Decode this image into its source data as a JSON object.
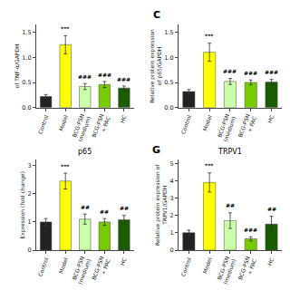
{
  "chart_data": [
    {
      "type": "bar",
      "ylabel": "of TNF-α/GAPDH",
      "categories": [
        "Control",
        "Model",
        "BCG-PSN\n(medium)",
        "BCG-PSN\n+ PAC",
        "HC"
      ],
      "values": [
        0.22,
        1.25,
        0.42,
        0.46,
        0.39
      ],
      "errors": [
        0.04,
        0.18,
        0.06,
        0.06,
        0.04
      ],
      "colors": [
        "#222222",
        "#ffff00",
        "#ccffaa",
        "#77cc00",
        "#1a5c00"
      ],
      "ylim": [
        0,
        1.65
      ],
      "yticks": [
        {
          "value": 0,
          "label": "0.0"
        },
        0.5,
        {
          "value": 1,
          "label": "1.0"
        },
        1.5
      ],
      "grid": false,
      "annotations": [
        {
          "category": "Model",
          "text": "***"
        },
        {
          "category": "BCG-PSN\n(medium)",
          "text": "###"
        },
        {
          "category": "BCG-PSN\n+ PAC",
          "text": "###"
        },
        {
          "category": "HC",
          "text": "###"
        }
      ]
    },
    {
      "type": "bar",
      "ylabel": "Relative protein expression\nof p65/GAPDH",
      "categories": [
        "Control",
        "Model",
        "BCG-PSN\n(medium)",
        "BCG-PSN\n+ PAC",
        "HC"
      ],
      "values": [
        0.32,
        1.1,
        0.52,
        0.5,
        0.51
      ],
      "errors": [
        0.04,
        0.18,
        0.06,
        0.05,
        0.05
      ],
      "colors": [
        "#222222",
        "#ffff00",
        "#ccffaa",
        "#77cc00",
        "#1a5c00"
      ],
      "ylim": [
        0,
        1.65
      ],
      "yticks": [
        {
          "value": 0,
          "label": "0.0"
        },
        0.5,
        {
          "value": 1,
          "label": "1.0"
        },
        1.5
      ],
      "grid": false,
      "annotations": [
        {
          "text": "C"
        },
        {
          "category": "Model",
          "text": "***"
        },
        {
          "category": "BCG-PSN\n(medium)",
          "text": "###"
        },
        {
          "category": "BCG-PSN\n+ PAC",
          "text": "###"
        },
        {
          "category": "HC",
          "text": "###"
        }
      ]
    },
    {
      "type": "bar",
      "title": "p65",
      "ylabel": "Expression (fold change)",
      "categories": [
        "Control",
        "Model",
        "BCG-PSN\n(medium)",
        "BCG-PSN\n+ PAC",
        "HC"
      ],
      "values": [
        1.0,
        2.45,
        1.1,
        1.0,
        1.08
      ],
      "errors": [
        0.12,
        0.28,
        0.18,
        0.12,
        0.15
      ],
      "colors": [
        "#222222",
        "#ffff00",
        "#ccffaa",
        "#77cc00",
        "#1a5c00"
      ],
      "ylim": [
        0,
        3.2
      ],
      "yticks": [
        0,
        1,
        2,
        3
      ],
      "grid": false,
      "annotations": [
        {
          "category": "Model",
          "text": "***"
        },
        {
          "category": "BCG-PSN\n(medium)",
          "text": "##"
        },
        {
          "category": "BCG-PSN\n+ PAC",
          "text": "##"
        },
        {
          "category": "HC",
          "text": "##"
        }
      ]
    },
    {
      "type": "bar",
      "title": "TRPV1",
      "ylabel": "Relative protein expression of\nTRPV1/GAPDH",
      "categories": [
        "Control",
        "Model",
        "BCG-PSN\n(medium)",
        "BCG-PSN\n+ PAC",
        "HC"
      ],
      "values": [
        1.0,
        3.9,
        1.7,
        0.65,
        1.5
      ],
      "errors": [
        0.15,
        0.55,
        0.45,
        0.12,
        0.45
      ],
      "colors": [
        "#222222",
        "#ffff00",
        "#ccffaa",
        "#77cc00",
        "#1a5c00"
      ],
      "ylim": [
        0,
        5.2
      ],
      "yticks": [
        0,
        1,
        2,
        3,
        4,
        5
      ],
      "grid": false,
      "annotations": [
        {
          "text": "G"
        },
        {
          "category": "Model",
          "text": "***"
        },
        {
          "category": "BCG-PSN\n(medium)",
          "text": "##"
        },
        {
          "category": "BCG-PSN\n+ PAC",
          "text": "###"
        },
        {
          "category": "HC",
          "text": "##"
        }
      ]
    }
  ]
}
